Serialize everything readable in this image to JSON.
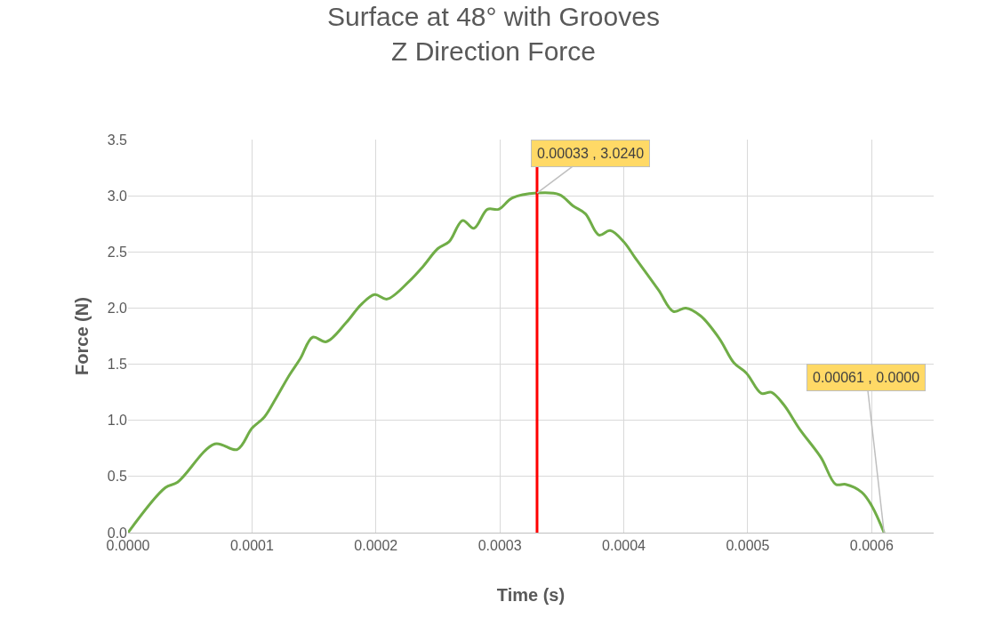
{
  "chart_data": {
    "type": "line",
    "title": "Surface at 48° with Grooves",
    "subtitle": "Z Direction Force",
    "xlabel": "Time (s)",
    "ylabel": "Force (N)",
    "x": [
      0,
      3e-05,
      4e-05,
      7e-05,
      8.8e-05,
      0.0001,
      0.00011,
      0.000119,
      0.00013,
      0.000139,
      0.000149,
      0.00016,
      0.000176,
      0.000188,
      0.000199,
      0.000209,
      0.000227,
      0.000238,
      0.00025,
      0.000259,
      0.00027,
      0.000279,
      0.00029,
      0.000299,
      0.00031,
      0.00033,
      0.000348,
      0.000359,
      0.000369,
      0.00038,
      0.000389,
      0.0004,
      0.000409,
      0.000428,
      0.00044,
      0.00045,
      0.000462,
      0.000477,
      0.000489,
      0.000499,
      0.000511,
      0.000519,
      0.000529,
      0.000542,
      0.000559,
      0.000571,
      0.000579,
      0.000592,
      0.0006,
      0.00061
    ],
    "series": [
      {
        "color": "#70ad47",
        "values": [
          0,
          0.4,
          0.45,
          0.79,
          0.74,
          0.93,
          1.03,
          1.19,
          1.4,
          1.55,
          1.74,
          1.7,
          1.87,
          2.03,
          2.12,
          2.08,
          2.24,
          2.37,
          2.53,
          2.59,
          2.78,
          2.71,
          2.88,
          2.88,
          2.98,
          3.024,
          3.01,
          2.91,
          2.84,
          2.65,
          2.69,
          2.59,
          2.45,
          2.16,
          1.97,
          2.0,
          1.93,
          1.73,
          1.51,
          1.42,
          1.24,
          1.25,
          1.14,
          0.92,
          0.67,
          0.43,
          0.43,
          0.36,
          0.24,
          0
        ]
      }
    ],
    "xlim": [
      0,
      0.00065
    ],
    "xticks": [
      {
        "value": 0,
        "label": "0.0000"
      },
      {
        "value": 0.0001,
        "label": "0.0001"
      },
      {
        "value": 0.0002,
        "label": "0.0002"
      },
      {
        "value": 0.0003,
        "label": "0.0003"
      },
      {
        "value": 0.0004,
        "label": "0.0004"
      },
      {
        "value": 0.0005,
        "label": "0.0005"
      },
      {
        "value": 0.0006,
        "label": "0.0006"
      }
    ],
    "ylim": [
      0,
      3.5
    ],
    "yticks": [
      {
        "value": 0,
        "label": "0.0"
      },
      {
        "value": 0.5,
        "label": "0.5"
      },
      {
        "value": 1,
        "label": "1.0"
      },
      {
        "value": 1.5,
        "label": "1.5"
      },
      {
        "value": 2,
        "label": "2.0"
      },
      {
        "value": 2.5,
        "label": "2.5"
      },
      {
        "value": 3,
        "label": "3.0"
      },
      {
        "value": 3.5,
        "label": "3.5"
      }
    ],
    "ref_lines": [
      {
        "axis": "x",
        "value": 0.00033,
        "color": "#ff0000"
      }
    ],
    "annotations": [
      {
        "text": "0.00033 , 3.0240",
        "x": 0.00033,
        "y": 3.024
      },
      {
        "text": "0.00061 , 0.0000",
        "x": 0.00061,
        "y": 0
      }
    ],
    "grid": true,
    "legend": false,
    "marker": "none",
    "line_style": "solid"
  }
}
